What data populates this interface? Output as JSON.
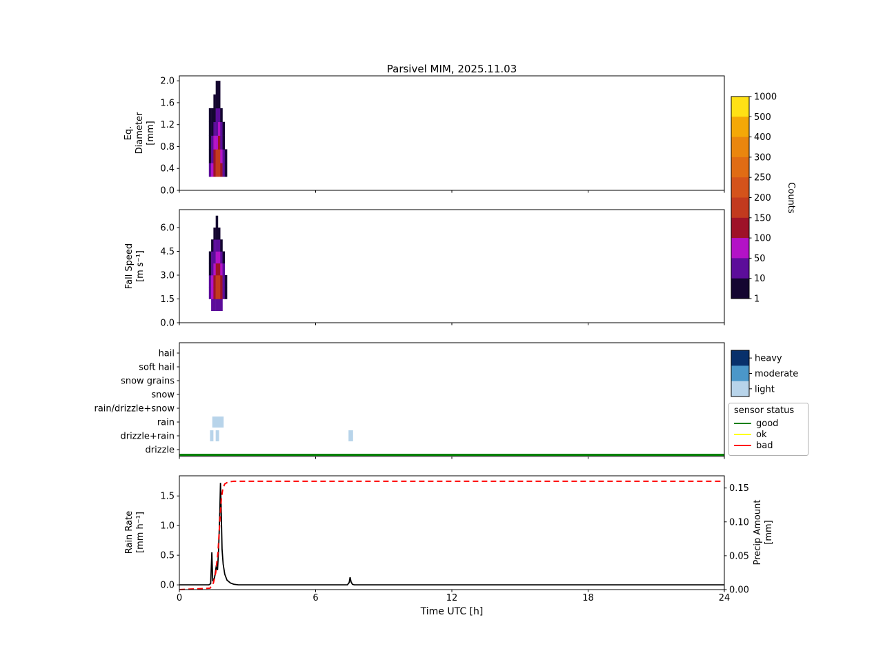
{
  "title": "Parsivel MIM, 2025.11.03",
  "xlabel": "Time UTC [h]",
  "colorbar": {
    "label": "Counts",
    "tick_labels": [
      "1000",
      "500",
      "400",
      "300",
      "250",
      "200",
      "150",
      "100",
      "50",
      "10",
      "1"
    ],
    "thresholds": [
      1,
      10,
      50,
      100,
      150,
      200,
      250,
      300,
      400,
      500,
      1000
    ],
    "band_colors_top_to_bottom": [
      "#ffe115",
      "#f4a807",
      "#ea860e",
      "#e06c14",
      "#d4531b",
      "#c23a1e",
      "#9e1228",
      "#b312c7",
      "#5c0d9a",
      "#140630"
    ]
  },
  "intensity_legend": {
    "items": [
      {
        "label": "heavy",
        "color": "#08306b"
      },
      {
        "label": "moderate",
        "color": "#4b97c9"
      },
      {
        "label": "light",
        "color": "#b8d4ea"
      }
    ]
  },
  "status_legend": {
    "title": "sensor status",
    "items": [
      {
        "label": "good",
        "color": "#008000"
      },
      {
        "label": "ok",
        "color": "#ffff00"
      },
      {
        "label": "bad",
        "color": "#ff0000"
      }
    ]
  },
  "chart_data": [
    {
      "id": "eq_diameter",
      "type": "heatmap",
      "ylabel_lines": [
        "Eq.",
        "Diameter",
        "[mm]"
      ],
      "xlim": [
        0,
        24
      ],
      "ylim": [
        0,
        2.09
      ],
      "yticks": [
        "0.0",
        "0.4",
        "0.8",
        "1.2",
        "1.6",
        "2.0"
      ],
      "bin_width": 0.1,
      "bin_height": 0.25,
      "cells": [
        [
          1.3,
          0.25,
          15
        ],
        [
          1.3,
          0.5,
          8
        ],
        [
          1.3,
          0.75,
          4
        ],
        [
          1.3,
          1.0,
          2
        ],
        [
          1.3,
          1.25,
          1
        ],
        [
          1.4,
          0.25,
          60
        ],
        [
          1.4,
          0.5,
          40
        ],
        [
          1.4,
          0.75,
          15
        ],
        [
          1.4,
          1.0,
          6
        ],
        [
          1.4,
          1.25,
          2
        ],
        [
          1.5,
          0.25,
          120
        ],
        [
          1.5,
          0.5,
          100
        ],
        [
          1.5,
          0.75,
          60
        ],
        [
          1.5,
          1.0,
          25
        ],
        [
          1.5,
          1.25,
          8
        ],
        [
          1.5,
          1.5,
          3
        ],
        [
          1.6,
          0.25,
          180
        ],
        [
          1.6,
          0.5,
          150
        ],
        [
          1.6,
          0.75,
          90
        ],
        [
          1.6,
          1.0,
          40
        ],
        [
          1.6,
          1.25,
          15
        ],
        [
          1.6,
          1.5,
          6
        ],
        [
          1.6,
          1.75,
          2
        ],
        [
          1.7,
          0.25,
          160
        ],
        [
          1.7,
          0.5,
          180
        ],
        [
          1.7,
          0.75,
          110
        ],
        [
          1.7,
          1.0,
          50
        ],
        [
          1.7,
          1.25,
          20
        ],
        [
          1.7,
          1.5,
          8
        ],
        [
          1.7,
          1.75,
          3
        ],
        [
          1.8,
          0.25,
          120
        ],
        [
          1.8,
          0.5,
          80
        ],
        [
          1.8,
          0.75,
          40
        ],
        [
          1.8,
          1.0,
          15
        ],
        [
          1.8,
          1.25,
          5
        ],
        [
          1.9,
          0.25,
          40
        ],
        [
          1.9,
          0.5,
          25
        ],
        [
          1.9,
          0.75,
          8
        ],
        [
          1.9,
          1.0,
          3
        ],
        [
          2.0,
          0.25,
          8
        ],
        [
          2.0,
          0.5,
          4
        ]
      ]
    },
    {
      "id": "fall_speed",
      "type": "heatmap",
      "ylabel_lines": [
        "Fall Speed",
        "[m s⁻¹]"
      ],
      "xlim": [
        0,
        24
      ],
      "ylim": [
        0,
        7.13
      ],
      "yticks": [
        "0.0",
        "1.5",
        "3.0",
        "4.5",
        "6.0"
      ],
      "bin_width": 0.1,
      "bin_height": 0.75,
      "cells": [
        [
          1.3,
          1.5,
          12
        ],
        [
          1.3,
          2.25,
          15
        ],
        [
          1.3,
          3.0,
          8
        ],
        [
          1.3,
          3.75,
          3
        ],
        [
          1.4,
          0.75,
          15
        ],
        [
          1.4,
          1.5,
          50
        ],
        [
          1.4,
          2.25,
          60
        ],
        [
          1.4,
          3.0,
          30
        ],
        [
          1.4,
          3.75,
          10
        ],
        [
          1.4,
          4.5,
          4
        ],
        [
          1.5,
          0.75,
          25
        ],
        [
          1.5,
          1.5,
          100
        ],
        [
          1.5,
          2.25,
          130
        ],
        [
          1.5,
          3.0,
          80
        ],
        [
          1.5,
          3.75,
          30
        ],
        [
          1.5,
          4.5,
          12
        ],
        [
          1.5,
          5.25,
          4
        ],
        [
          1.6,
          0.75,
          35
        ],
        [
          1.6,
          1.5,
          160
        ],
        [
          1.6,
          2.25,
          180
        ],
        [
          1.6,
          3.0,
          120
        ],
        [
          1.6,
          3.75,
          60
        ],
        [
          1.6,
          4.5,
          25
        ],
        [
          1.6,
          5.25,
          8
        ],
        [
          1.6,
          6.0,
          3
        ],
        [
          1.7,
          0.75,
          30
        ],
        [
          1.7,
          1.5,
          150
        ],
        [
          1.7,
          2.25,
          170
        ],
        [
          1.7,
          3.0,
          110
        ],
        [
          1.7,
          3.75,
          50
        ],
        [
          1.7,
          4.5,
          20
        ],
        [
          1.7,
          5.25,
          6
        ],
        [
          1.8,
          0.75,
          20
        ],
        [
          1.8,
          1.5,
          100
        ],
        [
          1.8,
          2.25,
          120
        ],
        [
          1.8,
          3.0,
          60
        ],
        [
          1.8,
          3.75,
          25
        ],
        [
          1.8,
          4.5,
          8
        ],
        [
          1.9,
          1.5,
          30
        ],
        [
          1.9,
          2.25,
          35
        ],
        [
          1.9,
          3.0,
          15
        ],
        [
          1.9,
          3.75,
          5
        ],
        [
          2.0,
          1.5,
          8
        ],
        [
          2.0,
          2.25,
          6
        ]
      ]
    },
    {
      "id": "precip_type",
      "type": "categorical-events",
      "categories": [
        "hail",
        "soft hail",
        "snow grains",
        "snow",
        "rain/drizzle+snow",
        "rain",
        "drizzle+rain",
        "drizzle"
      ],
      "events": [
        {
          "start": 1.35,
          "end": 1.5,
          "category": "drizzle+rain",
          "intensity": "light"
        },
        {
          "start": 1.45,
          "end": 1.95,
          "category": "rain",
          "intensity": "light"
        },
        {
          "start": 1.6,
          "end": 1.75,
          "category": "drizzle+rain",
          "intensity": "light"
        },
        {
          "start": 7.45,
          "end": 7.65,
          "category": "drizzle+rain",
          "intensity": "light"
        }
      ],
      "sensor_status": {
        "value": "good",
        "start": 0,
        "end": 24
      }
    },
    {
      "id": "rain_rate",
      "type": "line",
      "ylabel_lines": [
        "Rain Rate",
        "[mm h⁻¹]"
      ],
      "y2label_lines": [
        "Precip Amount",
        "[mm]"
      ],
      "xlim": [
        0,
        24
      ],
      "ylim": [
        -0.08,
        1.84
      ],
      "y2lim": [
        0,
        0.168
      ],
      "xticks": [
        0,
        6,
        12,
        18,
        24
      ],
      "xtick_labels": [
        "0",
        "6",
        "12",
        "18",
        "24"
      ],
      "yticks": [
        "0.0",
        "0.5",
        "1.0",
        "1.5"
      ],
      "y2ticks": [
        "0.00",
        "0.05",
        "0.10",
        "0.15"
      ],
      "series": [
        {
          "name": "rain_rate",
          "axis": "left",
          "style": "solid",
          "color": "#000000",
          "points": [
            [
              0,
              0
            ],
            [
              1.3,
              0
            ],
            [
              1.38,
              0.02
            ],
            [
              1.43,
              0.55
            ],
            [
              1.47,
              0.06
            ],
            [
              1.55,
              0.12
            ],
            [
              1.62,
              0.3
            ],
            [
              1.68,
              0.25
            ],
            [
              1.73,
              0.6
            ],
            [
              1.78,
              1.2
            ],
            [
              1.81,
              1.72
            ],
            [
              1.84,
              1.3
            ],
            [
              1.88,
              0.6
            ],
            [
              1.93,
              0.35
            ],
            [
              2.0,
              0.18
            ],
            [
              2.1,
              0.08
            ],
            [
              2.25,
              0.03
            ],
            [
              2.4,
              0.01
            ],
            [
              2.6,
              0
            ],
            [
              7.4,
              0
            ],
            [
              7.48,
              0.04
            ],
            [
              7.52,
              0.13
            ],
            [
              7.56,
              0.05
            ],
            [
              7.62,
              0.01
            ],
            [
              7.7,
              0
            ],
            [
              24,
              0
            ]
          ]
        },
        {
          "name": "precip_amount",
          "axis": "right",
          "style": "dashed",
          "color": "#ff0000",
          "points": [
            [
              0,
              0
            ],
            [
              1.35,
              0.002
            ],
            [
              1.5,
              0.01
            ],
            [
              1.6,
              0.025
            ],
            [
              1.7,
              0.055
            ],
            [
              1.78,
              0.1
            ],
            [
              1.85,
              0.135
            ],
            [
              1.92,
              0.15
            ],
            [
              2.0,
              0.156
            ],
            [
              2.15,
              0.159
            ],
            [
              2.4,
              0.16
            ],
            [
              24,
              0.16
            ]
          ]
        }
      ]
    }
  ]
}
